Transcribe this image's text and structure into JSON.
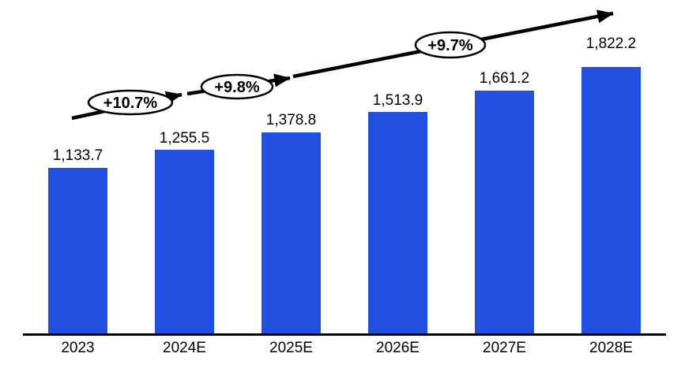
{
  "chart_data": {
    "type": "bar",
    "title": "",
    "xlabel": "",
    "ylabel": "",
    "categories": [
      "2023",
      "2024E",
      "2025E",
      "2026E",
      "2027E",
      "2028E"
    ],
    "values": [
      1133.7,
      1255.5,
      1378.8,
      1513.9,
      1661.2,
      1822.2
    ],
    "value_labels": [
      "1,133.7",
      "1,255.5",
      "1,378.8",
      "1,513.9",
      "1,661.2",
      "1,822.2"
    ],
    "growth_annotations": [
      {
        "label": "+10.7%"
      },
      {
        "label": "+9.8%"
      },
      {
        "label": "+9.7%"
      }
    ],
    "ylim": [
      0,
      2283
    ],
    "grid": false,
    "legend_position": "none",
    "bar_color": "#2150E0",
    "axis_color": "#000000",
    "arrow_color": "#000000",
    "annotation_fill": "#FFFFFF",
    "annotation_stroke": "#000000",
    "text_color": "#000000"
  }
}
